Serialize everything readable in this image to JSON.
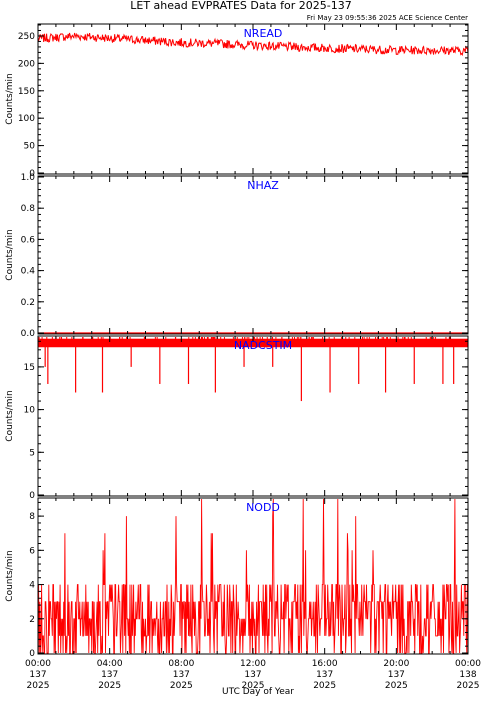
{
  "title": "LET ahead EVPRATES Data for 2025-137",
  "timestamp": "Fri May 23 09:55:36 2025 ACE Science Center",
  "x_axis_label": "UTC Day of Year",
  "colors": {
    "data": "#ff0000",
    "panel_label": "#0000ff",
    "axes": "#000000"
  },
  "chart_data": [
    {
      "type": "line",
      "panel": "NREAD",
      "ylabel": "Counts/min",
      "ylim": [
        0,
        270
      ],
      "yticks": [
        0,
        50,
        100,
        150,
        200,
        250
      ],
      "x_range_hours": [
        0,
        24
      ],
      "series": [
        {
          "name": "NREAD",
          "x": [
            0,
            2,
            4,
            6,
            8,
            10,
            12,
            14,
            16,
            18,
            20,
            22,
            24
          ],
          "values": [
            245,
            250,
            246,
            242,
            238,
            236,
            233,
            230,
            228,
            226,
            224,
            224,
            223
          ],
          "noise": 8
        }
      ]
    },
    {
      "type": "line",
      "panel": "NHAZ",
      "ylabel": "Counts/min",
      "ylim": [
        0,
        1
      ],
      "yticks": [
        0.0,
        0.2,
        0.4,
        0.6,
        0.8,
        1.0
      ],
      "x_range_hours": [
        0,
        24
      ],
      "series": [
        {
          "name": "NHAZ",
          "x": [
            0,
            24
          ],
          "values": [
            0,
            0
          ],
          "noise": 0
        }
      ]
    },
    {
      "type": "line",
      "panel": "NADCSTIM",
      "ylabel": "Counts/min",
      "ylim": [
        0,
        18.5
      ],
      "yticks": [
        0,
        5,
        10,
        15
      ],
      "x_range_hours": [
        0,
        24
      ],
      "series": [
        {
          "name": "NADCSTIM",
          "baseline": 18,
          "dips_hours": [
            0.4,
            0.55,
            2.1,
            3.6,
            5.2,
            6.8,
            8.4,
            9.9,
            11.5,
            13.1,
            14.7,
            16.3,
            17.9,
            19.4,
            21.0,
            22.6,
            23.2
          ],
          "dips_values": [
            15,
            13,
            12,
            12,
            15,
            13,
            13,
            12,
            15,
            15,
            11,
            12,
            13,
            12,
            13,
            13,
            13
          ]
        }
      ]
    },
    {
      "type": "line",
      "panel": "NODD",
      "ylabel": "Counts/min",
      "ylim": [
        0,
        9
      ],
      "yticks": [
        0,
        2,
        4,
        6,
        8
      ],
      "x_range_hours": [
        0,
        24
      ],
      "series": [
        {
          "name": "NODD",
          "typical_values": [
            0,
            1,
            2,
            3,
            4
          ],
          "peak_values": [
            6,
            7,
            8,
            9
          ],
          "samples_per_hour": 30
        }
      ]
    }
  ],
  "x_ticks": [
    {
      "hours": 0,
      "time": "00:00",
      "doy": "137",
      "year": "2025"
    },
    {
      "hours": 4,
      "time": "04:00",
      "doy": "137",
      "year": "2025"
    },
    {
      "hours": 8,
      "time": "08:00",
      "doy": "137",
      "year": "2025"
    },
    {
      "hours": 12,
      "time": "12:00",
      "doy": "137",
      "year": "2025"
    },
    {
      "hours": 16,
      "time": "16:00",
      "doy": "137",
      "year": "2025"
    },
    {
      "hours": 20,
      "time": "20:00",
      "doy": "137",
      "year": "2025"
    },
    {
      "hours": 24,
      "time": "00:00",
      "doy": "138",
      "year": "2025"
    }
  ]
}
